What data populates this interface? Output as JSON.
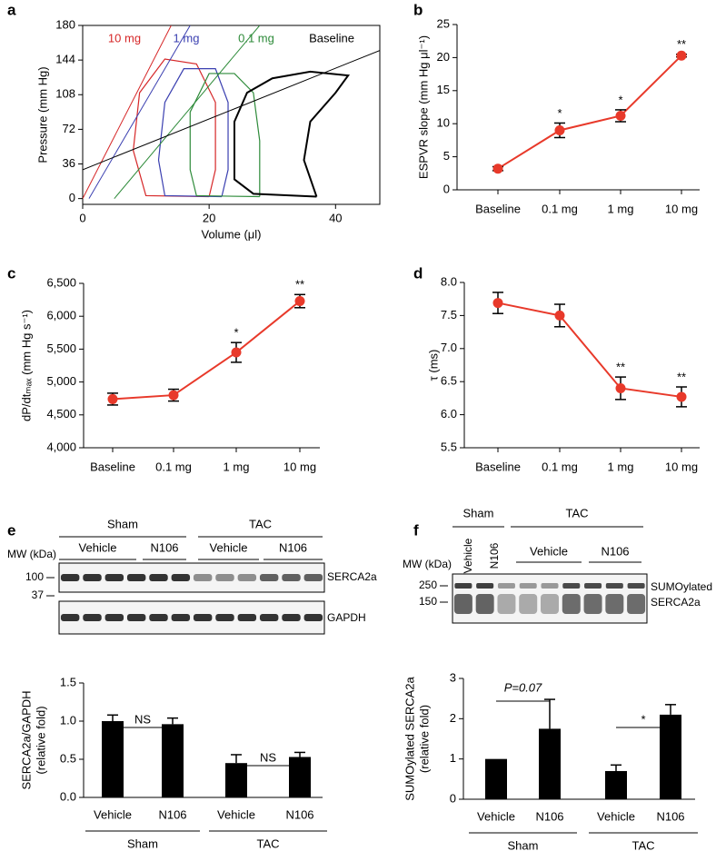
{
  "chart_data": [
    {
      "panel": "a",
      "type": "pv-loop",
      "xlabel": "Volume (μl)",
      "ylabel": "Pressure (mm Hg)",
      "xlim": [
        0,
        47
      ],
      "ylim": [
        -6,
        180
      ],
      "xticks": [
        0,
        20,
        40
      ],
      "yticks": [
        0,
        36,
        72,
        108,
        144,
        180
      ],
      "series": [
        {
          "name": "10 mg",
          "color": "#d62728",
          "x": [
            20,
            10,
            8,
            9,
            13,
            18,
            21,
            21,
            20
          ],
          "values": [
            2,
            3,
            50,
            110,
            145,
            140,
            100,
            30,
            2
          ],
          "espvr_x": [
            0,
            14
          ],
          "espvr_y": [
            0,
            180
          ]
        },
        {
          "name": "1 mg",
          "color": "#3a3fb0",
          "x": [
            22,
            13,
            12,
            13,
            16,
            21,
            23,
            23,
            22
          ],
          "values": [
            2,
            3,
            40,
            100,
            135,
            135,
            100,
            30,
            2
          ],
          "espvr_x": [
            1,
            17
          ],
          "espvr_y": [
            0,
            180
          ]
        },
        {
          "name": "0.1 mg",
          "color": "#2e8b3a",
          "x": [
            28,
            18,
            17,
            17,
            20,
            24,
            27,
            28,
            28
          ],
          "values": [
            2,
            3,
            30,
            90,
            130,
            130,
            110,
            60,
            2
          ],
          "espvr_x": [
            5,
            28
          ],
          "espvr_y": [
            0,
            180
          ]
        },
        {
          "name": "Baseline",
          "color": "#000000",
          "x": [
            37,
            27,
            24,
            24,
            26,
            30,
            36,
            42,
            40,
            36,
            35,
            37
          ],
          "values": [
            2,
            5,
            20,
            80,
            110,
            125,
            132,
            128,
            110,
            80,
            40,
            2
          ],
          "espvr_x": [
            0,
            47
          ],
          "espvr_y": [
            30,
            154
          ]
        }
      ]
    },
    {
      "panel": "b",
      "type": "line",
      "ylabel": "ESPVR slope (mm Hg μl⁻¹)",
      "color": "#e8392a",
      "categories": [
        "Baseline",
        "0.1 mg",
        "1 mg",
        "10 mg"
      ],
      "values": [
        3.2,
        9.0,
        11.2,
        20.3
      ],
      "errors": [
        0.3,
        1.1,
        0.9,
        0.2
      ],
      "significance": [
        null,
        "*",
        "*",
        "**"
      ],
      "ylim": [
        0,
        25
      ],
      "yticks": [
        0,
        5,
        10,
        15,
        20,
        25
      ]
    },
    {
      "panel": "c",
      "type": "line",
      "ylabel": "dP/dtₘₐₓ (mm Hg s⁻¹)",
      "color": "#e8392a",
      "categories": [
        "Baseline",
        "0.1 mg",
        "1 mg",
        "10 mg"
      ],
      "values": [
        4740,
        4800,
        5450,
        6230
      ],
      "errors": [
        90,
        90,
        150,
        100
      ],
      "significance": [
        null,
        null,
        "*",
        "**"
      ],
      "ylim": [
        4000,
        6500
      ],
      "yticks": [
        {
          "value": 4000,
          "label": "4,000"
        },
        {
          "value": 4500,
          "label": "4,500"
        },
        {
          "value": 5000,
          "label": "5,000"
        },
        {
          "value": 5500,
          "label": "5,500"
        },
        {
          "value": 6000,
          "label": "6,000"
        },
        {
          "value": 6500,
          "label": "6,500"
        }
      ]
    },
    {
      "panel": "d",
      "type": "line",
      "ylabel": "τ (ms)",
      "color": "#e8392a",
      "categories": [
        "Baseline",
        "0.1 mg",
        "1 mg",
        "10 mg"
      ],
      "values": [
        7.69,
        7.5,
        6.4,
        6.27
      ],
      "errors": [
        0.16,
        0.17,
        0.17,
        0.15
      ],
      "significance": [
        null,
        null,
        "**",
        "**"
      ],
      "ylim": [
        5.5,
        8.0
      ],
      "yticks": [
        5.5,
        {
          "value": 6,
          "label": "6.0"
        },
        6.5,
        {
          "value": 7,
          "label": "7.0"
        },
        7.5,
        {
          "value": 8,
          "label": "8.0"
        }
      ]
    },
    {
      "panel": "e",
      "type": "bar",
      "ylabel": [
        "SERCA2a/GAPDH",
        "(relative fold)"
      ],
      "color": "#000000",
      "categories": [
        "Vehicle",
        "N106",
        "Vehicle",
        "N106"
      ],
      "groups": [
        "Sham",
        "TAC"
      ],
      "values": [
        1.0,
        0.96,
        0.45,
        0.53
      ],
      "errors": [
        0.08,
        0.08,
        0.11,
        0.06
      ],
      "comparisons": [
        "NS",
        "NS"
      ],
      "ylim": [
        0,
        1.5
      ],
      "yticks": [
        {
          "value": 0,
          "label": "0.0"
        },
        0.5,
        {
          "value": 1,
          "label": "1.0"
        },
        1.5
      ],
      "blot": {
        "groups": [
          "Sham",
          "TAC"
        ],
        "lanes": [
          "Vehicle",
          "N106",
          "Vehicle",
          "N106"
        ],
        "mw_label": "MW (kDa)",
        "markers": [
          "100",
          "37"
        ],
        "bands": [
          "SERCA2a",
          "GAPDH"
        ]
      }
    },
    {
      "panel": "f",
      "type": "bar",
      "ylabel": [
        "SUMOylated SERCA2a",
        "(relative fold)"
      ],
      "color": "#000000",
      "categories": [
        "Vehicle",
        "N106",
        "Vehicle",
        "N106"
      ],
      "groups": [
        "Sham",
        "TAC"
      ],
      "values": [
        1.0,
        1.75,
        0.7,
        2.1
      ],
      "errors": [
        null,
        0.73,
        0.15,
        0.25
      ],
      "comparisons": [
        "P=0.07",
        "*"
      ],
      "ylim": [
        0,
        3
      ],
      "yticks": [
        0,
        1,
        2,
        3
      ],
      "blot": {
        "groups": [
          "Sham",
          "TAC"
        ],
        "lanes": [
          "Vehicle",
          "N106",
          "Vehicle",
          "N106"
        ],
        "mw_label": "MW (kDa)",
        "markers": [
          "250",
          "150"
        ],
        "bands": [
          "SUMOylated",
          "SERCA2a"
        ]
      }
    }
  ]
}
